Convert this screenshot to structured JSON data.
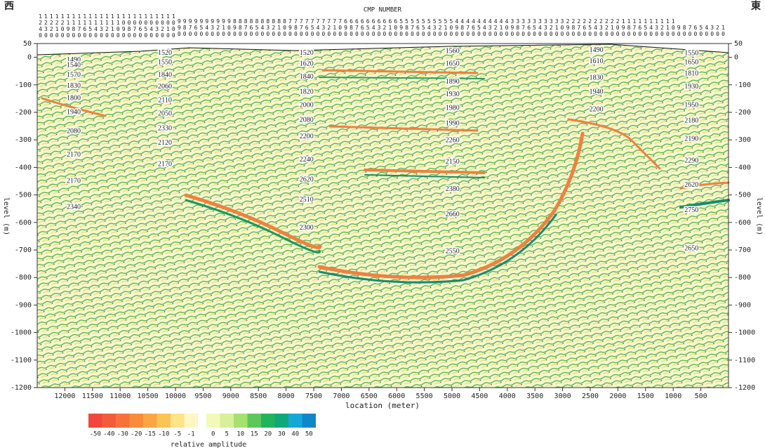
{
  "header": {
    "west": "西",
    "east": "東",
    "title": "CMP NUMBER"
  },
  "chart_data": {
    "type": "seismic-section",
    "xlabel": "location (meter)",
    "ylabel": "level (m)",
    "xlim": [
      12500,
      0
    ],
    "ylim": [
      -1200,
      50
    ],
    "xticks": [
      12000,
      11500,
      11000,
      10500,
      10000,
      9500,
      9000,
      8500,
      8000,
      7500,
      7000,
      6500,
      6000,
      5500,
      5000,
      4500,
      4000,
      3500,
      3000,
      2500,
      2000,
      1500,
      1000,
      500
    ],
    "yticks": [
      50,
      0,
      -100,
      -200,
      -300,
      -400,
      -500,
      -600,
      -700,
      -800,
      -900,
      -1000,
      -1100,
      -1200
    ],
    "cmp_numbers": [
      1240,
      1230,
      1220,
      1210,
      1200,
      1190,
      1180,
      1170,
      1160,
      1150,
      1140,
      1130,
      1120,
      1110,
      1100,
      1090,
      1080,
      1070,
      1060,
      1050,
      1040,
      1030,
      1020,
      1010,
      1000,
      990,
      980,
      970,
      960,
      950,
      940,
      930,
      920,
      910,
      900,
      890,
      880,
      870,
      860,
      850,
      840,
      830,
      820,
      810,
      800,
      790,
      780,
      770,
      760,
      750,
      740,
      730,
      720,
      710,
      700,
      690,
      680,
      670,
      660,
      650,
      640,
      630,
      620,
      610,
      600,
      590,
      580,
      570,
      560,
      550,
      540,
      530,
      520,
      510,
      500,
      490,
      480,
      470,
      460,
      450,
      440,
      430,
      420,
      410,
      400,
      390,
      380,
      370,
      360,
      350,
      340,
      330,
      320,
      310,
      300,
      290,
      280,
      270,
      260,
      250,
      240,
      230,
      220,
      210,
      200,
      190,
      180,
      170,
      160,
      150,
      140,
      130,
      120,
      110,
      100,
      90,
      80,
      70,
      60,
      50,
      40,
      30,
      20,
      10
    ],
    "velocity_labels": [
      {
        "x": 11840,
        "y": -10,
        "value": 1490
      },
      {
        "x": 11840,
        "y": -30,
        "value": 1540
      },
      {
        "x": 11840,
        "y": -65,
        "value": 1570
      },
      {
        "x": 11840,
        "y": -105,
        "value": 1830
      },
      {
        "x": 11840,
        "y": -150,
        "value": 1800
      },
      {
        "x": 11840,
        "y": -200,
        "value": 1940
      },
      {
        "x": 11840,
        "y": -270,
        "value": 2080
      },
      {
        "x": 11840,
        "y": -355,
        "value": 2170
      },
      {
        "x": 11840,
        "y": -450,
        "value": 2170
      },
      {
        "x": 11840,
        "y": -545,
        "value": 2340
      },
      {
        "x": 10190,
        "y": 15,
        "value": 1520
      },
      {
        "x": 10190,
        "y": -20,
        "value": 1550
      },
      {
        "x": 10190,
        "y": -65,
        "value": 1840
      },
      {
        "x": 10190,
        "y": -108,
        "value": 2060
      },
      {
        "x": 10190,
        "y": -157,
        "value": 2110
      },
      {
        "x": 10190,
        "y": -205,
        "value": 2050
      },
      {
        "x": 10190,
        "y": -259,
        "value": 2330
      },
      {
        "x": 10190,
        "y": -312,
        "value": 2120
      },
      {
        "x": 10190,
        "y": -389,
        "value": 2170
      },
      {
        "x": 7630,
        "y": 15,
        "value": 1520
      },
      {
        "x": 7630,
        "y": -24,
        "value": 1620
      },
      {
        "x": 7630,
        "y": -72,
        "value": 1840
      },
      {
        "x": 7630,
        "y": -126,
        "value": 1820
      },
      {
        "x": 7630,
        "y": -175,
        "value": 2000
      },
      {
        "x": 7630,
        "y": -229,
        "value": 2080
      },
      {
        "x": 7630,
        "y": -289,
        "value": 2200
      },
      {
        "x": 7630,
        "y": -373,
        "value": 2240
      },
      {
        "x": 7630,
        "y": -445,
        "value": 2620
      },
      {
        "x": 7630,
        "y": -518,
        "value": 2510
      },
      {
        "x": 7630,
        "y": -620,
        "value": 2300
      },
      {
        "x": 4990,
        "y": 22,
        "value": 1560
      },
      {
        "x": 4990,
        "y": -24,
        "value": 1650
      },
      {
        "x": 4990,
        "y": -90,
        "value": 1890
      },
      {
        "x": 4990,
        "y": -136,
        "value": 1930
      },
      {
        "x": 4990,
        "y": -185,
        "value": 1980
      },
      {
        "x": 4990,
        "y": -241,
        "value": 1990
      },
      {
        "x": 4990,
        "y": -302,
        "value": 2260
      },
      {
        "x": 4990,
        "y": -381,
        "value": 2150
      },
      {
        "x": 4990,
        "y": -480,
        "value": 2380
      },
      {
        "x": 4990,
        "y": -572,
        "value": 2660
      },
      {
        "x": 4990,
        "y": -705,
        "value": 2550
      },
      {
        "x": 2390,
        "y": 25,
        "value": 1490
      },
      {
        "x": 2390,
        "y": -16,
        "value": 1610
      },
      {
        "x": 2390,
        "y": -75,
        "value": 1830
      },
      {
        "x": 2390,
        "y": -126,
        "value": 1940
      },
      {
        "x": 2390,
        "y": -190,
        "value": 2200
      },
      {
        "x": 670,
        "y": 14,
        "value": 1550
      },
      {
        "x": 670,
        "y": -19,
        "value": 1650
      },
      {
        "x": 670,
        "y": -60,
        "value": 1810
      },
      {
        "x": 670,
        "y": -108,
        "value": 1930
      },
      {
        "x": 670,
        "y": -175,
        "value": 1950
      },
      {
        "x": 670,
        "y": -231,
        "value": 2180
      },
      {
        "x": 670,
        "y": -298,
        "value": 2190
      },
      {
        "x": 670,
        "y": -376,
        "value": 2290
      },
      {
        "x": 670,
        "y": -465,
        "value": 2620
      },
      {
        "x": 670,
        "y": -557,
        "value": 2750
      },
      {
        "x": 670,
        "y": -695,
        "value": 2650
      }
    ],
    "colorbar": {
      "label": "relative amplitude",
      "ticks": [
        -50,
        -40,
        -30,
        -20,
        -15,
        -10,
        -5,
        -1,
        0,
        5,
        10,
        15,
        20,
        30,
        40,
        50
      ],
      "colors": [
        "#f0483c",
        "#f25c3a",
        "#f6723a",
        "#f88c3c",
        "#faa644",
        "#fcc454",
        "#fde488",
        "#fff6c4",
        "#f2fab8",
        "#d8f09a",
        "#a6e070",
        "#5cc85c",
        "#22b45a",
        "#10a878",
        "#14a8d8",
        "#1088c8"
      ]
    }
  }
}
